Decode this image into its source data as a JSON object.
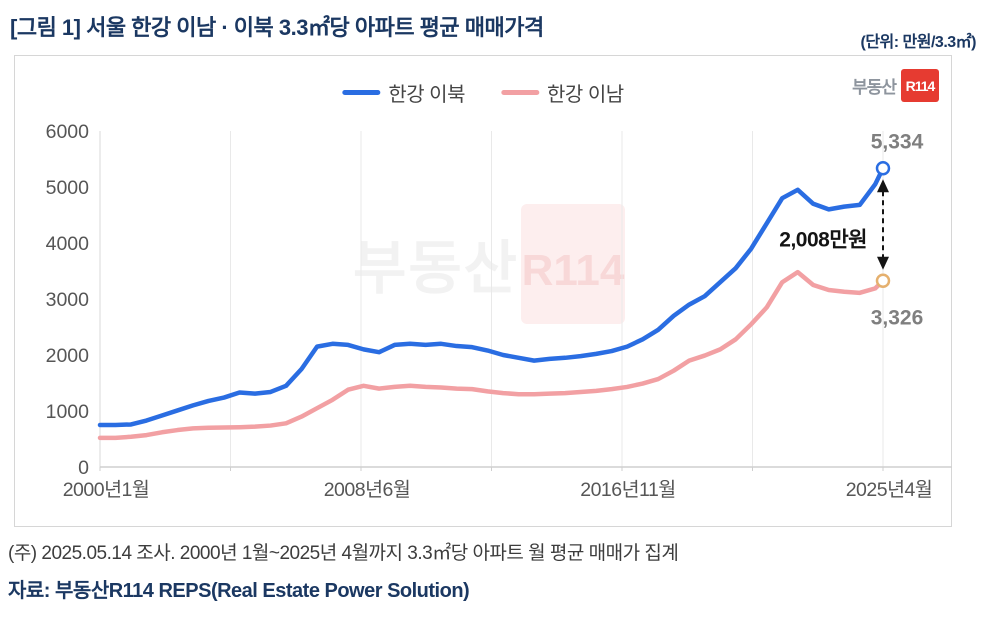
{
  "header": {
    "title": "[그림 1] 서울 한강 이남 · 이북 3.3㎡당 아파트 평균 매매가격",
    "unit": "(단위: 만원/3.3㎡)"
  },
  "legend": [
    {
      "label": "한강 이남",
      "color": "#2a6de2"
    },
    {
      "label": "한강 이북",
      "color": "#f2a0a3"
    }
  ],
  "logo": {
    "prefix": "부동산",
    "badge": "R114"
  },
  "watermark": {
    "prefix": "부동산",
    "badge": "R114"
  },
  "footer": {
    "note": "(주) 2025.05.14 조사. 2000년 1월~2025년 4월까지 3.3㎡당 아파트 월 평균 매매가 집계",
    "source": "자료: 부동산R114 REPS(Real Estate Power Solution)"
  },
  "colors": {
    "title_navy": "#1b3862",
    "south_blue": "#2a6de2",
    "north_pink": "#f2a0a3",
    "north_marker_stroke": "#e5b06e",
    "value_label_gray": "#7f7f7f",
    "gap_black": "#141414",
    "gridline": "#e9e9e9",
    "axis": "#cfcfcf",
    "tick_text": "#565656",
    "logo_red": "#e63b31"
  },
  "chart_data": {
    "type": "line",
    "title": "서울 한강 이남 · 이북 3.3㎡당 아파트 평균 매매가격",
    "ylabel": "만원/3.3㎡",
    "ylim": [
      0,
      6000
    ],
    "y_ticks": [
      0,
      1000,
      2000,
      3000,
      4000,
      5000,
      6000
    ],
    "x_unit": "months since 2000-01",
    "x_range_months": [
      0,
      303
    ],
    "x_tick_months": [
      0,
      101,
      202,
      303
    ],
    "x_tick_labels": [
      "2000년1월",
      "2008년6월",
      "2016년11월",
      "2025년4월"
    ],
    "gridline_months": [
      50.5,
      101,
      151.5,
      202,
      252.5,
      303
    ],
    "grid": "vertical-only",
    "legend_position": "top-center",
    "months": [
      0,
      6,
      12,
      18,
      24,
      30,
      36,
      42,
      48,
      54,
      60,
      66,
      72,
      78,
      84,
      90,
      96,
      102,
      108,
      114,
      120,
      126,
      132,
      138,
      144,
      150,
      156,
      162,
      168,
      174,
      180,
      186,
      192,
      198,
      204,
      210,
      216,
      222,
      228,
      234,
      240,
      246,
      252,
      258,
      264,
      270,
      276,
      282,
      288,
      294,
      300,
      303
    ],
    "series": [
      {
        "name": "한강 이북",
        "color": "#f2a0a3",
        "marker_stroke": "#e5b06e",
        "end_value": 3326,
        "end_label": "3,326",
        "values": [
          520,
          520,
          540,
          570,
          620,
          660,
          690,
          700,
          705,
          710,
          720,
          740,
          780,
          900,
          1050,
          1200,
          1380,
          1450,
          1400,
          1430,
          1450,
          1430,
          1420,
          1400,
          1390,
          1350,
          1320,
          1300,
          1300,
          1310,
          1320,
          1340,
          1360,
          1390,
          1430,
          1490,
          1570,
          1720,
          1900,
          1990,
          2100,
          2280,
          2550,
          2850,
          3300,
          3480,
          3250,
          3160,
          3130,
          3110,
          3190,
          3326
        ]
      },
      {
        "name": "한강 이남",
        "color": "#2a6de2",
        "marker_stroke": "#2a6de2",
        "end_value": 5334,
        "end_label": "5,334",
        "values": [
          750,
          750,
          760,
          830,
          920,
          1010,
          1100,
          1180,
          1240,
          1330,
          1310,
          1340,
          1450,
          1750,
          2150,
          2200,
          2180,
          2100,
          2050,
          2180,
          2200,
          2180,
          2200,
          2160,
          2140,
          2080,
          2000,
          1950,
          1900,
          1930,
          1950,
          1980,
          2020,
          2070,
          2150,
          2280,
          2450,
          2700,
          2900,
          3050,
          3300,
          3550,
          3900,
          4350,
          4800,
          4950,
          4700,
          4600,
          4650,
          4680,
          5050,
          5334
        ]
      }
    ],
    "gap_value": 2008,
    "gap_label": "2,008만원"
  }
}
